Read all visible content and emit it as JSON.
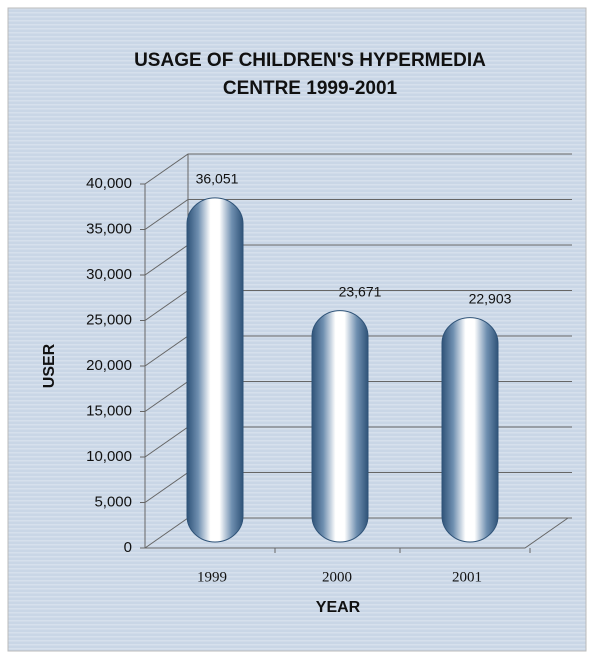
{
  "chart_data": {
    "type": "bar",
    "title": "USAGE OF CHILDREN'S HYPERMEDIA",
    "subtitle": "CENTRE 1999-2001",
    "x_label": "YEAR",
    "y_label": "USER",
    "categories": [
      "1999",
      "2000",
      "2001"
    ],
    "values": [
      36051,
      23671,
      22903
    ],
    "value_labels": [
      "36,051",
      "23,671",
      "22,903"
    ],
    "color": "#2f5378",
    "ylim": [
      0,
      40000
    ],
    "yticks": [
      0,
      {
        "value": 5000,
        "label": "5,000"
      },
      {
        "value": 10000,
        "label": "10,000"
      },
      {
        "value": 15000,
        "label": "15,000"
      },
      {
        "value": 20000,
        "label": "20,000"
      },
      {
        "value": 25000,
        "label": "25,000"
      },
      {
        "value": 30000,
        "label": "30,000"
      },
      {
        "value": 35000,
        "label": "35,000"
      },
      {
        "value": 40000,
        "label": "40,000"
      }
    ],
    "grid": true
  }
}
